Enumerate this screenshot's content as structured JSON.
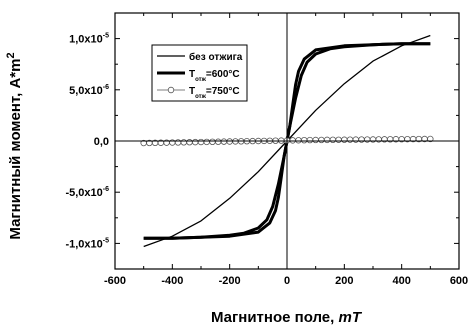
{
  "chart_data": {
    "type": "line",
    "xlabel": "Магнитное поле, ",
    "xlabel_unit": "mT",
    "ylabel": "Магнитный момент, A*m",
    "ylabel_sup": "2",
    "xlim": [
      -600,
      600
    ],
    "ylim": [
      -1.25e-05,
      1.25e-05
    ],
    "x_ticks": [
      -600,
      -400,
      -200,
      0,
      200,
      400,
      600
    ],
    "x_tick_labels": [
      "-600",
      "-400",
      "-200",
      "0",
      "200",
      "400",
      "600"
    ],
    "y_ticks": [
      {
        "value": 1e-05,
        "mantissa": "1,0x10",
        "exp": "-5"
      },
      {
        "value": 5e-06,
        "mantissa": "5,0x10",
        "exp": "-6"
      },
      {
        "value": 0,
        "mantissa": "0,0",
        "exp": ""
      },
      {
        "value": -5e-06,
        "mantissa": "-5,0x10",
        "exp": "-6"
      },
      {
        "value": -1e-05,
        "mantissa": "-1,0x10",
        "exp": "-5"
      }
    ],
    "grid": false,
    "legend_position": "top-left",
    "legend": [
      {
        "label": "без отжига",
        "style": "thin"
      },
      {
        "label_prefix": "T",
        "label_sub": "отж",
        "label_suffix": "=600°C",
        "style": "thick"
      },
      {
        "label_prefix": "T",
        "label_sub": "отж",
        "label_suffix": "=750°C",
        "style": "circles"
      }
    ],
    "series": [
      {
        "name": "без отжига",
        "style": "thin",
        "x": [
          -500,
          -400,
          -300,
          -200,
          -100,
          0,
          100,
          200,
          300,
          400,
          500
        ],
        "y": [
          -1.03e-05,
          -9.3e-06,
          -7.8e-06,
          -5.6e-06,
          -3e-06,
          0,
          3e-06,
          5.6e-06,
          7.8e-06,
          9.3e-06,
          1.03e-05
        ]
      },
      {
        "name": "T отж =600°C (descending branch)",
        "style": "thick",
        "x": [
          500,
          400,
          300,
          200,
          150,
          100,
          70,
          50,
          30,
          10,
          0,
          -10,
          -20,
          -30,
          -40,
          -60,
          -100,
          -200,
          -300,
          -400,
          -500
        ],
        "y": [
          9.5e-06,
          9.5e-06,
          9.4e-06,
          9.2e-06,
          9e-06,
          8.5e-06,
          7.7e-06,
          6.4e-06,
          4.2e-06,
          1.5e-06,
          0,
          -1.5e-06,
          -3.5e-06,
          -5.5e-06,
          -6.8e-06,
          -8e-06,
          -8.9e-06,
          -9.3e-06,
          -9.4e-06,
          -9.5e-06,
          -9.5e-06
        ]
      },
      {
        "name": "T отж =600°C (ascending branch)",
        "style": "thick",
        "x": [
          -500,
          -400,
          -300,
          -200,
          -150,
          -100,
          -70,
          -50,
          -30,
          -10,
          0,
          10,
          20,
          30,
          40,
          60,
          100,
          200,
          300,
          400,
          500
        ],
        "y": [
          -9.5e-06,
          -9.5e-06,
          -9.4e-06,
          -9.2e-06,
          -9e-06,
          -8.5e-06,
          -7.7e-06,
          -6.4e-06,
          -4.2e-06,
          -1.5e-06,
          0,
          1.5e-06,
          3.5e-06,
          5.5e-06,
          6.8e-06,
          8e-06,
          8.9e-06,
          9.3e-06,
          9.4e-06,
          9.5e-06,
          9.5e-06
        ]
      },
      {
        "name": "T отж =750°C",
        "style": "circles",
        "x": [
          -500,
          -480,
          -460,
          -440,
          -420,
          -400,
          -380,
          -360,
          -340,
          -320,
          -300,
          -280,
          -260,
          -240,
          -220,
          -200,
          -180,
          -160,
          -140,
          -120,
          -100,
          -80,
          -60,
          -40,
          -20,
          0,
          20,
          40,
          60,
          80,
          100,
          120,
          140,
          160,
          180,
          200,
          220,
          240,
          260,
          280,
          300,
          320,
          340,
          360,
          380,
          400,
          420,
          440,
          460,
          480,
          500
        ],
        "y": [
          -2e-07,
          -1.9e-07,
          -1.8e-07,
          -1.7e-07,
          -1.6e-07,
          -1.5e-07,
          -1.4e-07,
          -1.3e-07,
          -1.2e-07,
          -1.1e-07,
          -1e-07,
          -9e-08,
          -8e-08,
          -7e-08,
          -6e-08,
          -5e-08,
          -4e-08,
          -3e-08,
          -2e-08,
          -1e-08,
          0,
          1e-08,
          2e-08,
          3e-08,
          4e-08,
          5e-08,
          6e-08,
          7e-08,
          8e-08,
          9e-08,
          1e-07,
          1.05e-07,
          1.1e-07,
          1.15e-07,
          1.2e-07,
          1.25e-07,
          1.3e-07,
          1.35e-07,
          1.4e-07,
          1.45e-07,
          1.5e-07,
          1.55e-07,
          1.6e-07,
          1.65e-07,
          1.7e-07,
          1.75e-07,
          1.8e-07,
          1.85e-07,
          1.9e-07,
          1.95e-07,
          2e-07
        ]
      }
    ]
  }
}
